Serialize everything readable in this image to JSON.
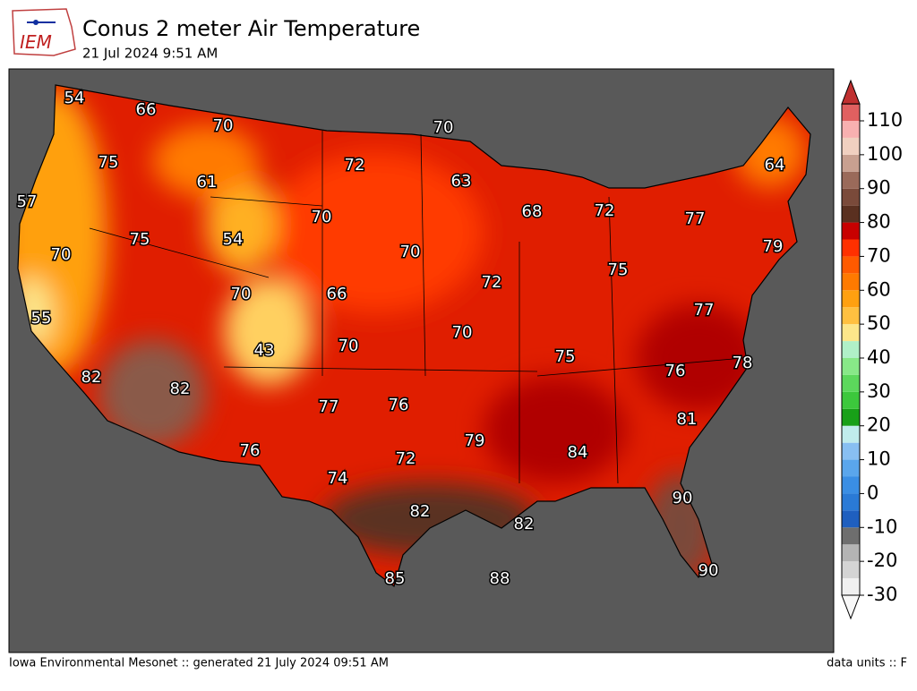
{
  "header": {
    "logo": "IEM",
    "title": "Conus 2 meter Air Temperature",
    "subtitle": "21 Jul 2024 9:51 AM"
  },
  "map": {
    "labels": [
      54,
      66,
      70,
      70,
      75,
      72,
      61,
      63,
      64,
      57,
      68,
      72,
      70,
      77,
      54,
      75,
      70,
      79,
      70,
      72,
      75,
      70,
      66,
      77,
      55,
      70,
      70,
      43,
      75,
      78,
      76,
      82,
      82,
      77,
      76,
      81,
      79,
      84,
      76,
      72,
      74,
      90,
      82,
      82,
      90,
      85,
      88
    ]
  },
  "colorbar": {
    "ticks": [
      -30,
      -20,
      -10,
      0,
      10,
      20,
      30,
      40,
      50,
      60,
      70,
      80,
      90,
      100,
      110
    ],
    "colors": [
      "#f0f0f0",
      "#d4d4d4",
      "#b4b4b4",
      "#6e6e6e",
      "#1f5fbf",
      "#2a7ad6",
      "#3a8ee4",
      "#5aa6ec",
      "#88bff2",
      "#c0ecec",
      "#18a018",
      "#3cc83c",
      "#5cd85c",
      "#88e888",
      "#b0f0c8",
      "#fce68a",
      "#ffc040",
      "#ffa010",
      "#ff7a00",
      "#ff5a00",
      "#ff3000",
      "#c80000",
      "#5a3020",
      "#7a4a3a",
      "#9a6a5a",
      "#c8a090",
      "#f0d0c0",
      "#f8b0b0",
      "#e06060"
    ],
    "under_color": "#f8f8f8",
    "over_color": "#c03030"
  },
  "footer": {
    "left": "Iowa Environmental Mesonet :: generated 21 July 2024 09:51 AM",
    "right": "data units :: F"
  }
}
